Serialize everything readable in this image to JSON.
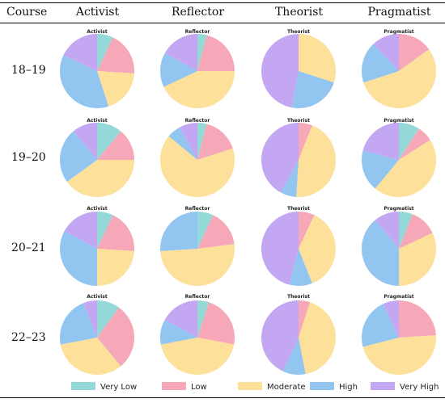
{
  "table": {
    "corner_header": "Course",
    "columns": [
      "Activist",
      "Reflector",
      "Theorist",
      "Pragmatist"
    ],
    "rows": [
      "18–19",
      "19–20",
      "20–21",
      "22–23"
    ]
  },
  "legend": {
    "items": [
      {
        "label": "Very Low",
        "color": "#94d8d8"
      },
      {
        "label": "Low",
        "color": "#f7a8b8"
      },
      {
        "label": "Moderate",
        "color": "#fde09a"
      },
      {
        "label": "High",
        "color": "#92c5ef"
      },
      {
        "label": "Very High",
        "color": "#c4a7f2"
      }
    ]
  },
  "chart_data": [
    {
      "type": "pie",
      "title": "Activist",
      "course": "18–19",
      "categories": [
        "Very Low",
        "Low",
        "Moderate",
        "High",
        "Very High"
      ],
      "values": [
        7,
        19,
        19,
        37,
        18
      ]
    },
    {
      "type": "pie",
      "title": "Reflector",
      "course": "18–19",
      "categories": [
        "Very Low",
        "Low",
        "Moderate",
        "High",
        "Very High"
      ],
      "values": [
        4,
        21,
        43,
        15,
        17
      ]
    },
    {
      "type": "pie",
      "title": "Theorist",
      "course": "18–19",
      "categories": [
        "Very Low",
        "Low",
        "Moderate",
        "High",
        "Very High"
      ],
      "values": [
        0,
        0,
        30,
        23,
        47
      ]
    },
    {
      "type": "pie",
      "title": "Pragmatist",
      "course": "18–19",
      "categories": [
        "Very Low",
        "Low",
        "Moderate",
        "High",
        "Very High"
      ],
      "values": [
        0,
        15,
        55,
        18,
        12
      ]
    },
    {
      "type": "pie",
      "title": "Activist",
      "course": "19–20",
      "categories": [
        "Very Low",
        "Low",
        "Moderate",
        "High",
        "Very High"
      ],
      "values": [
        11,
        14,
        40,
        24,
        11
      ]
    },
    {
      "type": "pie",
      "title": "Reflector",
      "course": "19–20",
      "categories": [
        "Very Low",
        "Low",
        "Moderate",
        "High",
        "Very High"
      ],
      "values": [
        4,
        16,
        66,
        6,
        8
      ]
    },
    {
      "type": "pie",
      "title": "Theorist",
      "course": "19–20",
      "categories": [
        "Very Low",
        "Low",
        "Moderate",
        "High",
        "Very High"
      ],
      "values": [
        0,
        6,
        45,
        7,
        42
      ]
    },
    {
      "type": "pie",
      "title": "Pragmatist",
      "course": "19–20",
      "categories": [
        "Very Low",
        "Low",
        "Moderate",
        "High",
        "Very High"
      ],
      "values": [
        9,
        7,
        45,
        18,
        21
      ]
    },
    {
      "type": "pie",
      "title": "Activist",
      "course": "20–21",
      "categories": [
        "Very Low",
        "Low",
        "Moderate",
        "High",
        "Very High"
      ],
      "values": [
        7,
        19,
        24,
        33,
        17
      ]
    },
    {
      "type": "pie",
      "title": "Reflector",
      "course": "20–21",
      "categories": [
        "Very Low",
        "Low",
        "Moderate",
        "High",
        "Very High"
      ],
      "values": [
        7,
        16,
        51,
        26,
        0
      ]
    },
    {
      "type": "pie",
      "title": "Theorist",
      "course": "20–21",
      "categories": [
        "Very Low",
        "Low",
        "Moderate",
        "High",
        "Very High"
      ],
      "values": [
        0,
        7,
        37,
        10,
        46
      ]
    },
    {
      "type": "pie",
      "title": "Pragmatist",
      "course": "20–21",
      "categories": [
        "Very Low",
        "Low",
        "Moderate",
        "High",
        "Very High"
      ],
      "values": [
        6,
        12,
        32,
        39,
        11
      ]
    },
    {
      "type": "pie",
      "title": "Activist",
      "course": "22–23",
      "categories": [
        "Very Low",
        "Low",
        "Moderate",
        "High",
        "Very High"
      ],
      "values": [
        10,
        29,
        33,
        22,
        6
      ]
    },
    {
      "type": "pie",
      "title": "Reflector",
      "course": "22–23",
      "categories": [
        "Very Low",
        "Low",
        "Moderate",
        "High",
        "Very High"
      ],
      "values": [
        5,
        23,
        44,
        11,
        17
      ]
    },
    {
      "type": "pie",
      "title": "Theorist",
      "course": "22–23",
      "categories": [
        "Very Low",
        "Low",
        "Moderate",
        "High",
        "Very High"
      ],
      "values": [
        0,
        5,
        42,
        10,
        43
      ]
    },
    {
      "type": "pie",
      "title": "Pragmatist",
      "course": "22–23",
      "categories": [
        "Very Low",
        "Low",
        "Moderate",
        "High",
        "Very High"
      ],
      "values": [
        0,
        24,
        47,
        22,
        7
      ]
    }
  ]
}
